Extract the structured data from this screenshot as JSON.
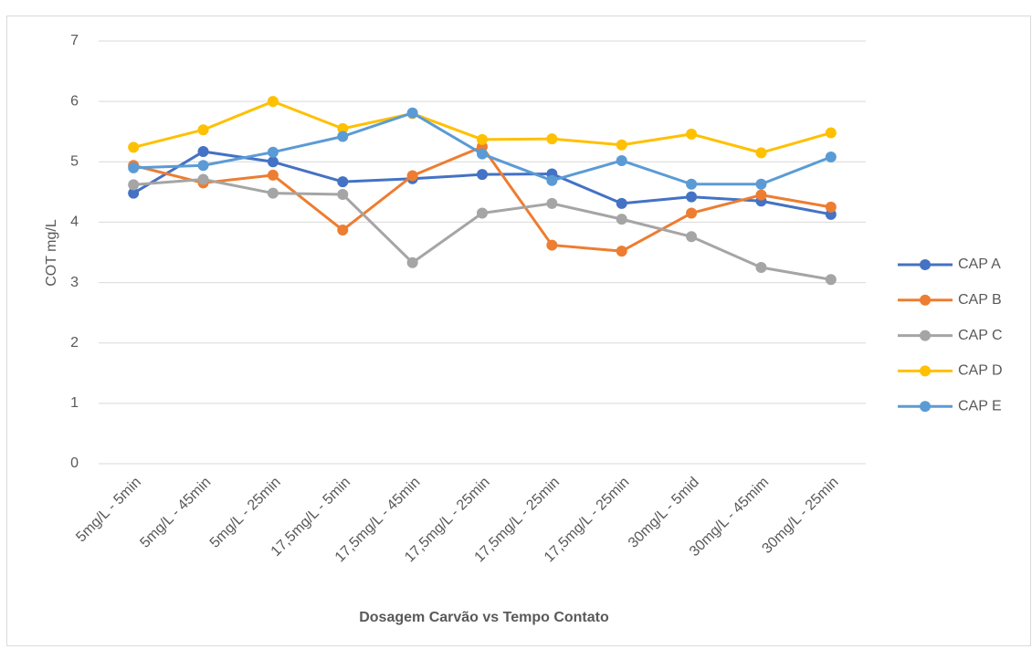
{
  "chart_data": {
    "type": "line",
    "x_label": "Dosagem Carvão vs Tempo Contato",
    "y_label": "COT mg/L",
    "categories": [
      "5mg/L - 5min",
      "5mg/L - 45min",
      "5mg/L - 25min",
      "17,5mg/L - 5min",
      "17,5mg/L - 45min",
      "17,5mg/L - 25min",
      "17,5mg/L - 25min",
      "17,5mg/L - 25min",
      "30mg/L - 5mid",
      "30mg/L - 45mim",
      "30mg/L - 25min"
    ],
    "series": [
      {
        "name": "CAP A",
        "color": "#4472c4",
        "values": [
          4.48,
          5.17,
          5.0,
          4.67,
          4.72,
          4.79,
          4.8,
          4.31,
          4.42,
          4.35,
          4.13
        ]
      },
      {
        "name": "CAP B",
        "color": "#ed7d31",
        "values": [
          4.94,
          4.65,
          4.78,
          3.87,
          4.77,
          5.25,
          3.62,
          3.52,
          4.15,
          4.45,
          4.25
        ]
      },
      {
        "name": "CAP C",
        "color": "#a5a5a5",
        "values": [
          4.62,
          4.71,
          4.48,
          4.46,
          3.33,
          4.15,
          4.31,
          4.05,
          3.76,
          3.25,
          3.05
        ]
      },
      {
        "name": "CAP D",
        "color": "#ffc000",
        "values": [
          5.24,
          5.53,
          6.0,
          5.55,
          5.8,
          5.37,
          5.38,
          5.28,
          5.46,
          5.15,
          5.48
        ]
      },
      {
        "name": "CAP E",
        "color": "#5b9bd5",
        "values": [
          4.9,
          4.94,
          5.16,
          5.42,
          5.81,
          5.13,
          4.69,
          5.02,
          4.63,
          4.63,
          5.08
        ]
      }
    ],
    "ylim": [
      0,
      7
    ],
    "yticks": [
      0,
      1,
      2,
      3,
      4,
      5,
      6,
      7
    ],
    "grid": true,
    "legend": "right"
  }
}
